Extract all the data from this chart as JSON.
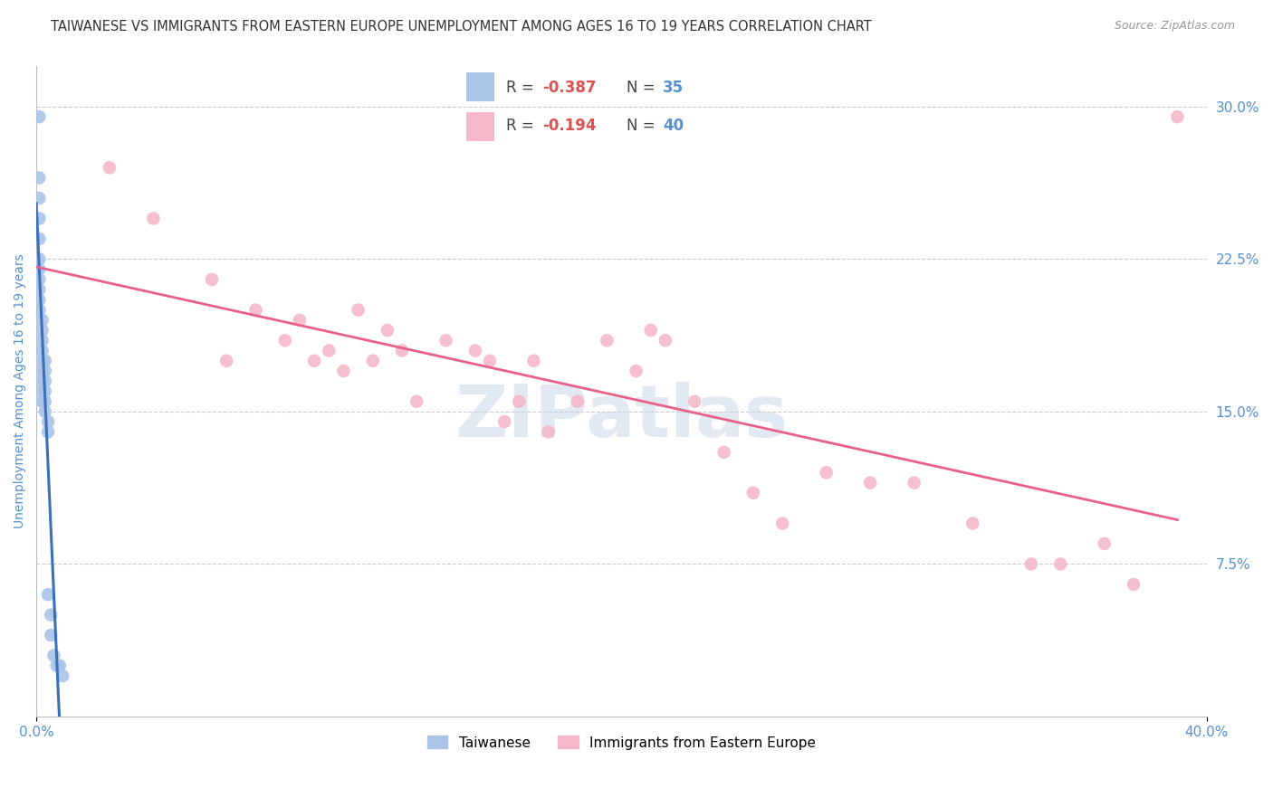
{
  "title": "TAIWANESE VS IMMIGRANTS FROM EASTERN EUROPE UNEMPLOYMENT AMONG AGES 16 TO 19 YEARS CORRELATION CHART",
  "source": "Source: ZipAtlas.com",
  "ylabel": "Unemployment Among Ages 16 to 19 years",
  "right_ytick_labels": [
    "30.0%",
    "22.5%",
    "15.0%",
    "7.5%"
  ],
  "right_ytick_values": [
    0.3,
    0.225,
    0.15,
    0.075
  ],
  "xlim": [
    0.0,
    0.4
  ],
  "ylim": [
    0.0,
    0.32
  ],
  "xtick_labels": [
    "0.0%",
    "40.0%"
  ],
  "xtick_values": [
    0.0,
    0.4
  ],
  "gridline_color": "#cccccc",
  "background_color": "#ffffff",
  "taiwanese_color": "#aac4e8",
  "eastern_europe_color": "#f5b8c8",
  "taiwanese_line_color": "#3a70b8",
  "eastern_europe_line_color": "#e8608a",
  "legend_R_taiwanese": "-0.387",
  "legend_N_taiwanese": "35",
  "legend_R_eastern": "-0.194",
  "legend_N_eastern": "40",
  "title_color": "#333333",
  "axis_label_color": "#5590d0",
  "taiwanese_scatter_x": [
    0.001,
    0.001,
    0.001,
    0.001,
    0.001,
    0.001,
    0.001,
    0.001,
    0.001,
    0.001,
    0.001,
    0.002,
    0.002,
    0.002,
    0.002,
    0.002,
    0.002,
    0.002,
    0.002,
    0.002,
    0.003,
    0.003,
    0.003,
    0.003,
    0.003,
    0.003,
    0.004,
    0.004,
    0.004,
    0.005,
    0.005,
    0.006,
    0.007,
    0.008,
    0.009
  ],
  "taiwanese_scatter_y": [
    0.295,
    0.265,
    0.255,
    0.245,
    0.235,
    0.225,
    0.22,
    0.215,
    0.21,
    0.205,
    0.2,
    0.195,
    0.19,
    0.185,
    0.18,
    0.175,
    0.17,
    0.165,
    0.16,
    0.155,
    0.175,
    0.17,
    0.165,
    0.16,
    0.155,
    0.15,
    0.145,
    0.14,
    0.06,
    0.05,
    0.04,
    0.03,
    0.025,
    0.025,
    0.02
  ],
  "eastern_europe_scatter_x": [
    0.025,
    0.04,
    0.06,
    0.065,
    0.075,
    0.085,
    0.09,
    0.095,
    0.1,
    0.105,
    0.11,
    0.115,
    0.12,
    0.125,
    0.13,
    0.14,
    0.15,
    0.155,
    0.16,
    0.165,
    0.17,
    0.175,
    0.185,
    0.195,
    0.205,
    0.21,
    0.215,
    0.225,
    0.235,
    0.245,
    0.255,
    0.27,
    0.285,
    0.3,
    0.32,
    0.34,
    0.35,
    0.365,
    0.375,
    0.39
  ],
  "eastern_europe_scatter_y": [
    0.27,
    0.245,
    0.215,
    0.175,
    0.2,
    0.185,
    0.195,
    0.175,
    0.18,
    0.17,
    0.2,
    0.175,
    0.19,
    0.18,
    0.155,
    0.185,
    0.18,
    0.175,
    0.145,
    0.155,
    0.175,
    0.14,
    0.155,
    0.185,
    0.17,
    0.19,
    0.185,
    0.155,
    0.13,
    0.11,
    0.095,
    0.12,
    0.115,
    0.115,
    0.095,
    0.075,
    0.075,
    0.085,
    0.065,
    0.295
  ],
  "marker_size": 110,
  "title_fontsize": 10.5,
  "source_fontsize": 9,
  "axis_label_fontsize": 10,
  "legend_fontsize": 11,
  "tick_fontsize": 11,
  "watermark_text": "ZIPatlas",
  "watermark_color": "#c8d4e8",
  "watermark_alpha": 0.5,
  "watermark_fontsize": 58
}
